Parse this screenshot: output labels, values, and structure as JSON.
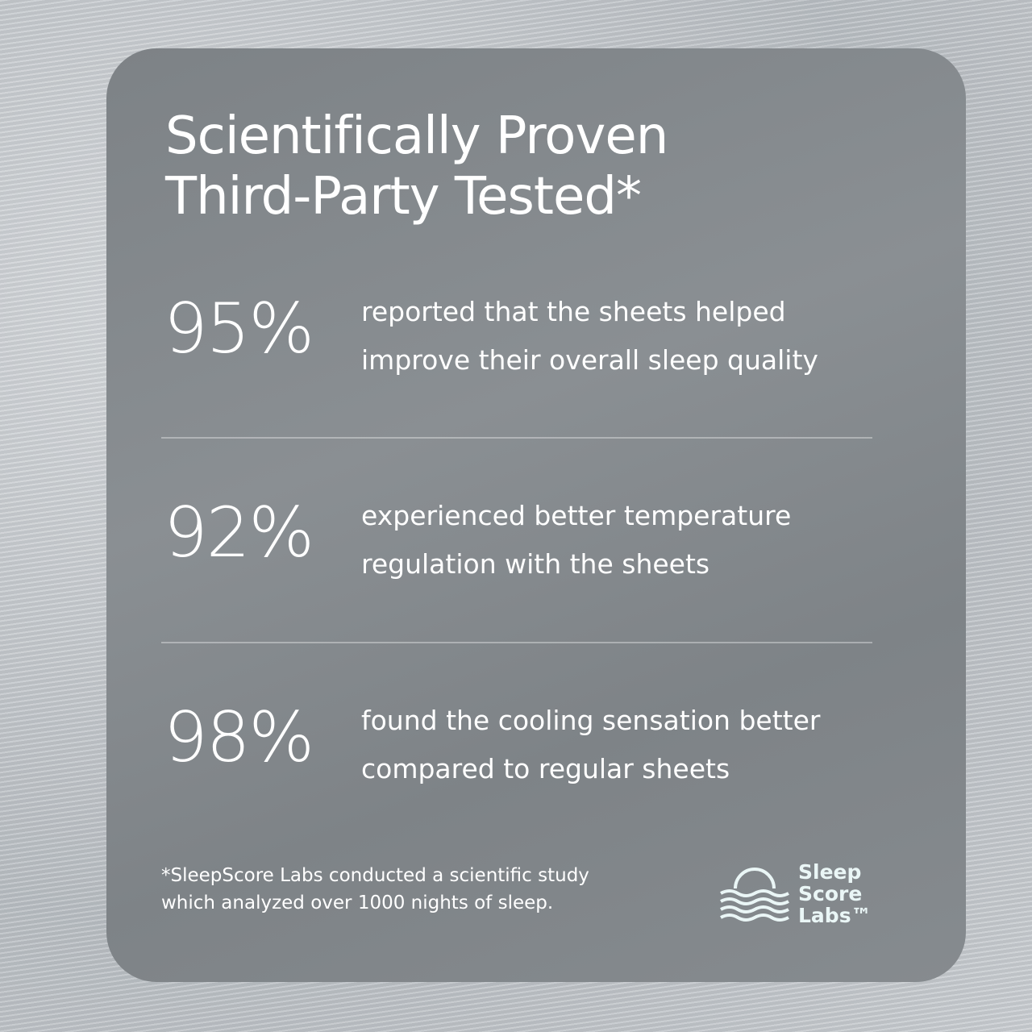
{
  "header": {
    "title_lines": [
      "Scientifically Proven",
      "Third-Party Tested*"
    ]
  },
  "stats": [
    {
      "value": "95%",
      "lines": [
        "reported that the sheets helped",
        "improve their overall sleep quality"
      ]
    },
    {
      "value": "92%",
      "lines": [
        "experienced better temperature",
        "regulation with the sheets"
      ]
    },
    {
      "value": "98%",
      "lines": [
        "found the cooling sensation better",
        "compared to regular sheets"
      ]
    }
  ],
  "footnote": {
    "lines": [
      "*SleepScore Labs conducted a scientific study",
      "which analyzed over 1000 nights of sleep."
    ]
  },
  "logo": {
    "lines": [
      "Sleep",
      "Score",
      "Labs™"
    ]
  }
}
